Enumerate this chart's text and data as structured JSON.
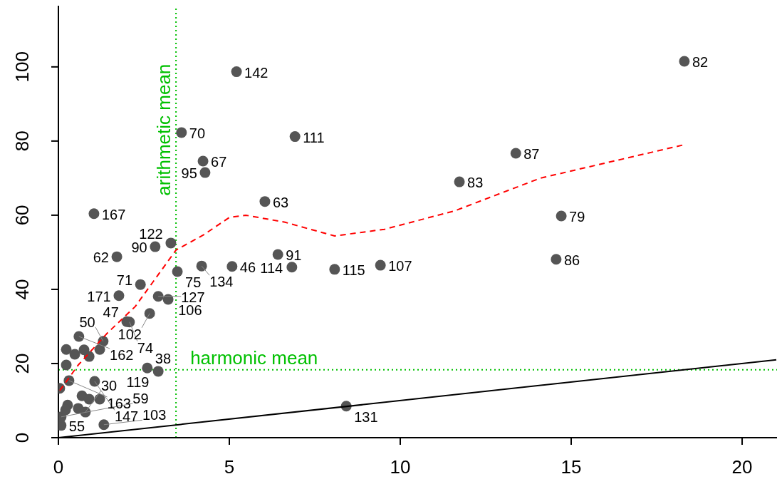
{
  "chart_data": {
    "type": "scatter",
    "xlim": [
      0,
      21.02
    ],
    "ylim": [
      0,
      116.5
    ],
    "xticks": [
      0,
      5,
      10,
      15,
      20
    ],
    "yticks": [
      0,
      20,
      40,
      60,
      80,
      100
    ],
    "grid": false,
    "legend": false,
    "marker": "circle",
    "series": [
      {
        "type": "scatter",
        "color": "#555555",
        "x": [
          18.31,
          5.21,
          3.6,
          6.92,
          13.38,
          4.23,
          4.29,
          11.73,
          6.04,
          1.04,
          14.71,
          3.29,
          2.83,
          1.71,
          6.42,
          14.56,
          4.19,
          5.08,
          3.48,
          6.83,
          8.08,
          9.42,
          2.4,
          1.77,
          2.92,
          3.21,
          2.67,
          2.0,
          2.08,
          8.42,
          2.6,
          2.92,
          0.6,
          1.31,
          0.31,
          1.06,
          0.08,
          0.08,
          1.33,
          0.79,
          0.23,
          0.23,
          0.48,
          0.75,
          0.9,
          1.21,
          0.04,
          0.27,
          0.21,
          0.69,
          0.9,
          1.21,
          0.58
        ],
        "values": [
          101.5,
          98.7,
          82.3,
          81.2,
          76.7,
          74.6,
          71.5,
          69.0,
          63.7,
          60.4,
          59.8,
          52.5,
          51.5,
          48.8,
          49.4,
          48.1,
          46.3,
          46.2,
          44.8,
          46.0,
          45.4,
          46.5,
          41.3,
          38.3,
          38.1,
          37.3,
          33.5,
          31.3,
          31.2,
          8.5,
          18.8,
          17.9,
          27.3,
          26.0,
          15.4,
          15.2,
          3.3,
          5.6,
          3.5,
          6.9,
          23.8,
          19.6,
          22.5,
          23.7,
          21.9,
          23.8,
          13.3,
          8.8,
          7.5,
          11.3,
          10.4,
          10.4,
          7.9
        ]
      },
      {
        "type": "line",
        "color": "#000000",
        "line_style": "solid",
        "marker": "none",
        "x": [
          0,
          21
        ],
        "values": [
          0,
          21
        ]
      },
      {
        "type": "line",
        "color": "#ff0000",
        "line_style": "dashed",
        "marker": "none",
        "x": [
          0.04,
          0.58,
          1.42,
          2.25,
          3.44,
          4.23,
          5.0,
          5.48,
          6.63,
          8.08,
          9.54,
          11.6,
          14.1,
          18.3
        ],
        "values": [
          12.7,
          19.6,
          28.1,
          35.4,
          50.6,
          54.6,
          59.4,
          60.0,
          58.1,
          54.4,
          56.2,
          61.2,
          70.0,
          79.0
        ]
      }
    ],
    "annotations": [
      {
        "text": "82",
        "x": 18.31,
        "y": 101.5
      },
      {
        "text": "142",
        "x": 5.21,
        "y": 98.7
      },
      {
        "text": "70",
        "x": 3.6,
        "y": 82.3
      },
      {
        "text": "111",
        "x": 6.92,
        "y": 81.2
      },
      {
        "text": "87",
        "x": 13.38,
        "y": 76.7
      },
      {
        "text": "67",
        "x": 4.23,
        "y": 74.6
      },
      {
        "text": "95",
        "x": 4.29,
        "y": 71.5
      },
      {
        "text": "83",
        "x": 11.73,
        "y": 69.0
      },
      {
        "text": "63",
        "x": 6.04,
        "y": 63.7
      },
      {
        "text": "167",
        "x": 1.04,
        "y": 60.4
      },
      {
        "text": "79",
        "x": 14.71,
        "y": 59.8
      },
      {
        "text": "122",
        "x": 3.29,
        "y": 52.5
      },
      {
        "text": "90",
        "x": 2.83,
        "y": 51.5
      },
      {
        "text": "62",
        "x": 1.71,
        "y": 48.8
      },
      {
        "text": "91",
        "x": 6.42,
        "y": 49.4
      },
      {
        "text": "86",
        "x": 14.56,
        "y": 48.1
      },
      {
        "text": "134",
        "x": 4.19,
        "y": 46.3
      },
      {
        "text": "46",
        "x": 5.08,
        "y": 46.2
      },
      {
        "text": "75",
        "x": 3.48,
        "y": 44.8
      },
      {
        "text": "114",
        "x": 6.83,
        "y": 46.0
      },
      {
        "text": "115",
        "x": 8.08,
        "y": 45.4
      },
      {
        "text": "107",
        "x": 9.42,
        "y": 46.5
      },
      {
        "text": "71",
        "x": 2.4,
        "y": 41.3
      },
      {
        "text": "171",
        "x": 1.77,
        "y": 38.3
      },
      {
        "text": "127",
        "x": 2.92,
        "y": 38.1
      },
      {
        "text": "106",
        "x": 3.21,
        "y": 37.3
      },
      {
        "text": "102",
        "x": 2.67,
        "y": 33.5
      },
      {
        "text": "47",
        "x": 2.0,
        "y": 31.3
      },
      {
        "text": "74",
        "x": 2.08,
        "y": 31.2
      },
      {
        "text": "131",
        "x": 8.42,
        "y": 8.5
      },
      {
        "text": "38",
        "x": 2.6,
        "y": 18.8
      },
      {
        "text": "119",
        "x": 2.92,
        "y": 17.9
      },
      {
        "text": "162",
        "x": 0.6,
        "y": 27.3
      },
      {
        "text": "50",
        "x": 1.31,
        "y": 26.0
      },
      {
        "text": "163",
        "x": 0.31,
        "y": 15.4
      },
      {
        "text": "147",
        "x": 1.06,
        "y": 15.2
      },
      {
        "text": "55",
        "x": 0.08,
        "y": 3.3
      },
      {
        "text": "59",
        "x": 0.08,
        "y": 5.6
      },
      {
        "text": "103",
        "x": 1.33,
        "y": 3.5
      },
      {
        "text": "30",
        "x": 0.79,
        "y": 6.9
      }
    ],
    "ref_lines": [
      {
        "axis": "x",
        "value": 3.44,
        "label": "arithmetic mean",
        "color": "#00c000",
        "line_style": "dotted"
      },
      {
        "axis": "y",
        "value": 18.3,
        "label": "harmonic mean",
        "color": "#00c000",
        "line_style": "dotted"
      }
    ]
  }
}
